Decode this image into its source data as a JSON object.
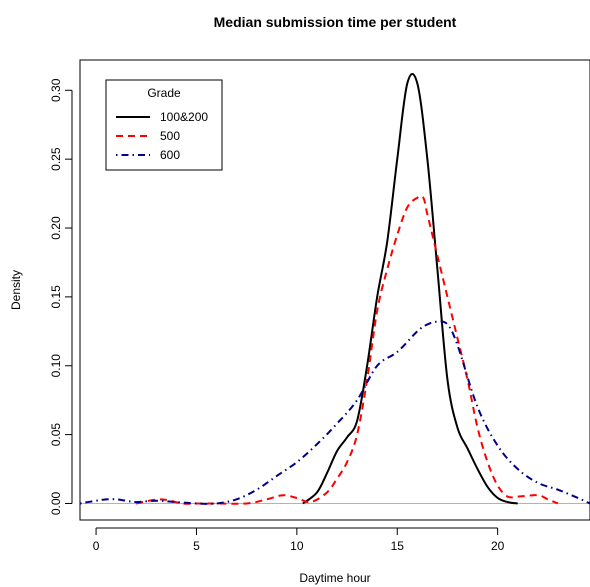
{
  "chart_data": {
    "type": "line",
    "title": "Median submission time per student",
    "xlabel": "Daytime hour",
    "ylabel": "Density",
    "xlim": [
      -0.8,
      24.6
    ],
    "ylim": [
      -0.012,
      0.322
    ],
    "x_ticks": [
      0,
      5,
      10,
      15,
      20
    ],
    "y_ticks": [
      0.0,
      0.05,
      0.1,
      0.15,
      0.2,
      0.25,
      0.3
    ],
    "y_tick_labels": [
      "0.00",
      "0.05",
      "0.10",
      "0.15",
      "0.20",
      "0.25",
      "0.30"
    ],
    "grid": false,
    "baseline": 0,
    "legend": {
      "title": "Grade",
      "placement": "top-left"
    },
    "series": [
      {
        "name": "100&200",
        "color": "#000000",
        "dash": "solid",
        "x": [
          10.3,
          11.0,
          11.5,
          12.0,
          12.5,
          13.0,
          13.5,
          14.0,
          14.5,
          15.0,
          15.5,
          16.0,
          16.5,
          17.0,
          17.5,
          18.0,
          18.5,
          19.0,
          19.5,
          20.0,
          20.5,
          21.0
        ],
        "y": [
          0.0,
          0.008,
          0.022,
          0.038,
          0.048,
          0.06,
          0.1,
          0.15,
          0.19,
          0.25,
          0.305,
          0.305,
          0.25,
          0.17,
          0.09,
          0.055,
          0.04,
          0.025,
          0.012,
          0.004,
          0.001,
          0.0
        ]
      },
      {
        "name": "500",
        "color": "#ff0000",
        "dash": "dashed",
        "x": [
          2.0,
          3.2,
          4.3,
          5.0,
          6.0,
          7.5,
          8.5,
          9.3,
          10.0,
          10.7,
          11.5,
          12.0,
          12.5,
          13.0,
          13.5,
          14.0,
          14.5,
          15.0,
          15.5,
          16.0,
          16.3,
          16.5,
          17.0,
          17.5,
          18.0,
          18.5,
          19.0,
          19.5,
          20.0,
          20.5,
          21.0,
          22.0,
          22.5,
          23.0
        ],
        "y": [
          0.0,
          0.003,
          0.0,
          0.0,
          0.0,
          0.0,
          0.003,
          0.006,
          0.004,
          0.001,
          0.008,
          0.018,
          0.03,
          0.05,
          0.09,
          0.14,
          0.17,
          0.195,
          0.215,
          0.222,
          0.222,
          0.21,
          0.18,
          0.15,
          0.12,
          0.09,
          0.055,
          0.03,
          0.013,
          0.005,
          0.005,
          0.006,
          0.003,
          0.0
        ]
      },
      {
        "name": "600",
        "color": "#00008b",
        "dash": "dotdash",
        "x": [
          -0.8,
          0.0,
          0.5,
          1.0,
          1.5,
          2.0,
          3.0,
          4.0,
          5.0,
          6.0,
          7.0,
          8.0,
          9.0,
          10.0,
          11.0,
          12.0,
          13.0,
          14.0,
          15.0,
          16.0,
          16.5,
          17.0,
          17.5,
          18.0,
          19.0,
          20.0,
          21.0,
          22.0,
          23.0,
          24.0,
          24.6
        ],
        "y": [
          0.0,
          0.002,
          0.003,
          0.003,
          0.002,
          0.001,
          0.002,
          0.001,
          0.0,
          0.0,
          0.003,
          0.01,
          0.02,
          0.03,
          0.043,
          0.058,
          0.075,
          0.1,
          0.11,
          0.125,
          0.13,
          0.132,
          0.13,
          0.115,
          0.07,
          0.042,
          0.025,
          0.015,
          0.01,
          0.004,
          0.0
        ]
      }
    ]
  }
}
